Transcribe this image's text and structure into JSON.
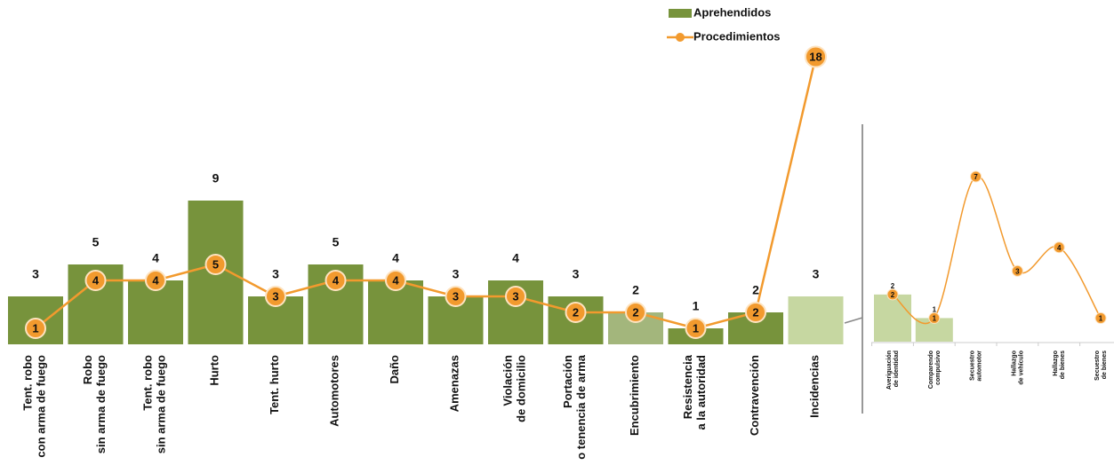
{
  "chart_data": [
    {
      "type": "combo",
      "categories": [
        "Tent. robo\ncon arma de fuego",
        "Robo\nsin arma de fuego",
        "Tent. robo\nsin arma de fuego",
        "Hurto",
        "Tent. hurto",
        "Automotores",
        "Daño",
        "Amenazas",
        "Violación\nde domicilio",
        "Portación\no tenencia de arma",
        "Encubrimiento",
        "Resistencia\na la autoridad",
        "Contravención",
        "Incidencias"
      ],
      "series": [
        {
          "name": "Aprehendidos",
          "type": "bar",
          "colors": [
            "#77933c",
            "#77933c",
            "#77933c",
            "#77933c",
            "#77933c",
            "#77933c",
            "#77933c",
            "#77933c",
            "#77933c",
            "#77933c",
            "#a3b67c",
            "#77933c",
            "#77933c",
            "#c6d7a1"
          ],
          "values": [
            3,
            5,
            4,
            9,
            3,
            5,
            4,
            3,
            4,
            3,
            2,
            1,
            2,
            3
          ]
        },
        {
          "name": "Procedimientos",
          "type": "line",
          "color": "#f29a2e",
          "values": [
            1,
            4,
            4,
            5,
            3,
            4,
            4,
            3,
            3,
            2,
            2,
            1,
            2,
            18
          ]
        }
      ],
      "ylim": [
        0,
        18
      ],
      "smooth": false,
      "legend": "top-right"
    },
    {
      "type": "combo",
      "categories": [
        "Averiguación\nde identidad",
        "Comparendo\ncompulsivo",
        "Secuestro\nautomotor",
        "Hallazgo\nde vehículo",
        "Hallazgo\nde bienes",
        "Secuestro\nde bienes"
      ],
      "series": [
        {
          "type": "bar",
          "colors": [
            "#c6d7a1",
            "#c6d7a1",
            "#c6d7a1",
            "#c6d7a1",
            "#c6d7a1",
            "#c6d7a1"
          ],
          "values": [
            2,
            1,
            null,
            null,
            null,
            null
          ]
        },
        {
          "type": "line",
          "color": "#f29a2e",
          "values": [
            2,
            1,
            7,
            3,
            4,
            1
          ]
        }
      ],
      "ylim": [
        0,
        7
      ],
      "smooth": true
    }
  ]
}
